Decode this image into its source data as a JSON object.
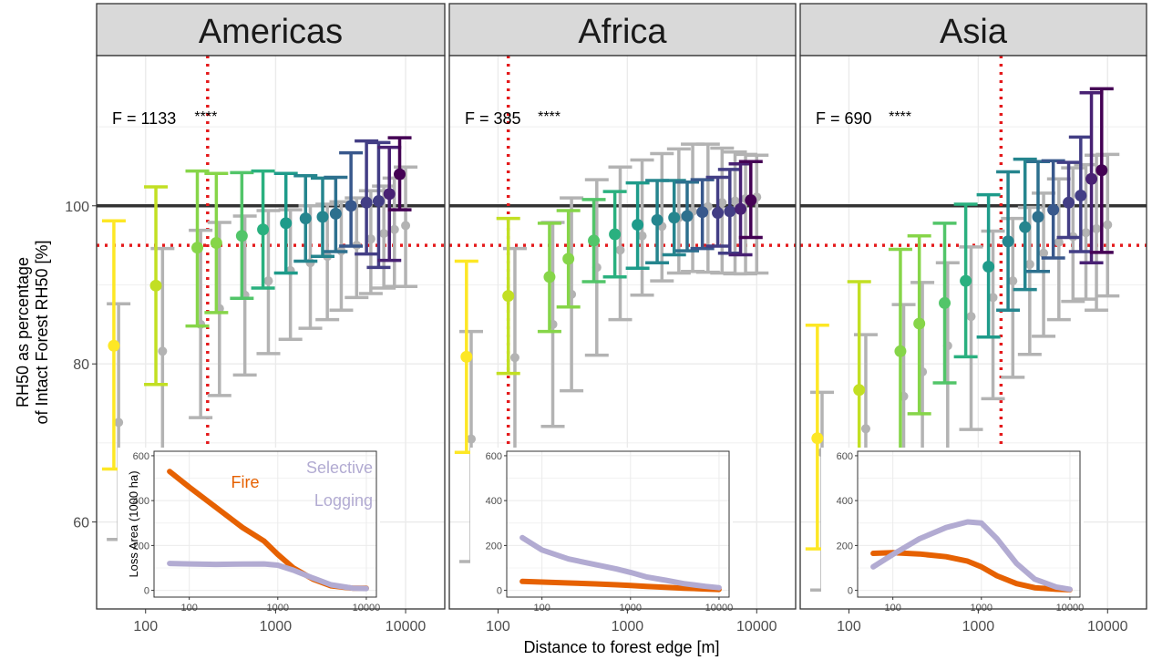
{
  "chart_data": {
    "type": "scatter",
    "xlabel": "Distance to forest edge [m]",
    "ylabel_lines": [
      "RH50 as percentage",
      "of Intact Forest RH50 [%]"
    ],
    "x_scale": "log",
    "xlim": [
      42,
      20000
    ],
    "ylim": [
      49,
      119
    ],
    "x_ticks": [
      "100",
      "1000",
      "10000"
    ],
    "y_ticks": [
      "60",
      "80",
      "100"
    ],
    "reference_lines": {
      "solid_y": 100,
      "dotted_y": 95
    },
    "colors": {
      "panel_strip_bg": "#d9d9d9",
      "grid": "#ebebeb",
      "grey_errorbar": "#b3b3b3",
      "reference_solid": "#333333",
      "reference_dotted": "#e41a1c",
      "viridis": [
        "#fde725",
        "#c2df23",
        "#86d549",
        "#52c569",
        "#2ab07f",
        "#1e9b8a",
        "#25858e",
        "#2d708e",
        "#38588c",
        "#433e85",
        "#482173",
        "#440154"
      ]
    },
    "inset": {
      "ylabel": "Loss Area (1000 ha)",
      "y_ticks": [
        "0",
        "200",
        "400",
        "600"
      ],
      "x_ticks": [
        "100",
        "1000",
        "10000"
      ],
      "ylim": [
        -30,
        620
      ],
      "xlim": [
        40,
        13000
      ],
      "series_names": [
        "Fire",
        "Selective Logging"
      ],
      "fire_label": "Fire",
      "logging_label_lines": [
        "Selective",
        "Logging"
      ],
      "fire_color": "#e66101",
      "logging_color": "#b2abd2"
    },
    "panels": [
      {
        "name": "Americas",
        "stat_text": "F = 1133",
        "stars": "****",
        "vline_x": 300,
        "x": [
          57,
          120,
          250,
          350,
          550,
          800,
          1200,
          1700,
          2300,
          2900,
          3800,
          5000,
          6200,
          7500,
          9000
        ],
        "y": [
          82.3,
          89.9,
          94.7,
          95.3,
          96.2,
          97.0,
          97.8,
          98.4,
          98.6,
          99.0,
          100.0,
          100.4,
          100.6,
          101.5,
          104.0
        ],
        "ymin": [
          66.7,
          77.4,
          84.8,
          86.5,
          88.3,
          89.6,
          91.5,
          93.0,
          93.6,
          94.2,
          94.9,
          93.9,
          92.2,
          93.1,
          99.5
        ],
        "ymax": [
          98.1,
          102.4,
          104.4,
          104.1,
          104.2,
          104.4,
          104.1,
          103.8,
          103.5,
          103.6,
          106.7,
          108.2,
          108.0,
          107.4,
          108.6
        ],
        "grey_x": [
          62,
          135,
          265,
          370,
          580,
          880,
          1300,
          1850,
          2500,
          3200,
          4200,
          5400,
          6800,
          8200,
          10000
        ],
        "grey_y": [
          72.6,
          81.6,
          85.0,
          87.0,
          88.7,
          90.5,
          91.8,
          92.8,
          93.6,
          94.3,
          95.0,
          95.8,
          96.5,
          97.0,
          97.5
        ],
        "grey_ymin": [
          57.8,
          68.8,
          73.2,
          76.0,
          78.6,
          81.3,
          83.1,
          84.5,
          85.6,
          86.8,
          88.4,
          88.9,
          89.6,
          89.8,
          89.8
        ],
        "grey_ymax": [
          87.6,
          94.6,
          96.9,
          97.9,
          98.7,
          99.4,
          99.5,
          100.0,
          100.2,
          100.5,
          101.0,
          101.9,
          102.5,
          103.5,
          104.9
        ],
        "inset_fire_x": [
          60,
          100,
          200,
          400,
          700,
          1000,
          1500,
          2500,
          4000,
          7000,
          10000
        ],
        "inset_fire": [
          530,
          460,
          370,
          280,
          220,
          160,
          100,
          50,
          20,
          10,
          10
        ],
        "inset_logging_x": [
          60,
          100,
          200,
          400,
          700,
          1000,
          1500,
          2500,
          4000,
          7000,
          10000
        ],
        "inset_logging": [
          120,
          118,
          116,
          117,
          118,
          112,
          90,
          55,
          25,
          10,
          8
        ]
      },
      {
        "name": "Africa",
        "stat_text": "F = 385",
        "stars": "****",
        "vline_x": 120,
        "x": [
          57,
          120,
          250,
          350,
          550,
          800,
          1200,
          1700,
          2300,
          2900,
          3800,
          5000,
          6200,
          7500,
          9000
        ],
        "y": [
          80.9,
          88.6,
          91.0,
          93.3,
          95.6,
          96.4,
          97.6,
          98.2,
          98.5,
          98.7,
          99.2,
          99.1,
          99.3,
          99.6,
          100.7
        ],
        "ymin": [
          68.8,
          78.8,
          84.1,
          87.2,
          90.4,
          91.0,
          92.1,
          92.8,
          93.8,
          94.3,
          94.6,
          94.9,
          94.0,
          93.8,
          96.0
        ],
        "ymax": [
          93.0,
          98.4,
          97.8,
          99.4,
          100.8,
          101.8,
          102.9,
          103.2,
          103.2,
          103.0,
          103.3,
          103.6,
          104.6,
          105.3,
          105.6
        ],
        "grey_x": [
          62,
          135,
          265,
          370,
          580,
          880,
          1300,
          1850,
          2500,
          3200,
          4200,
          5400,
          6800,
          8200,
          10000
        ],
        "grey_y": [
          70.5,
          80.8,
          85.0,
          88.8,
          92.2,
          94.4,
          96.2,
          97.4,
          98.5,
          99.3,
          99.9,
          100.4,
          100.6,
          100.9,
          101.1
        ],
        "grey_ymin": [
          55.0,
          67.4,
          72.1,
          76.6,
          81.1,
          85.6,
          88.7,
          90.5,
          91.5,
          91.7,
          91.6,
          91.5,
          91.4,
          91.4,
          91.5
        ],
        "grey_ymax": [
          84.1,
          94.6,
          97.9,
          101.0,
          103.3,
          104.9,
          105.8,
          106.6,
          107.2,
          107.8,
          107.8,
          107.3,
          106.8,
          106.5,
          106.4
        ],
        "inset_fire_x": [
          60,
          100,
          200,
          400,
          700,
          1000,
          1500,
          2500,
          4000,
          7000,
          10000
        ],
        "inset_fire": [
          40,
          37,
          33,
          29,
          25,
          22,
          18,
          14,
          10,
          6,
          4
        ],
        "inset_logging_x": [
          60,
          100,
          200,
          400,
          700,
          1000,
          1500,
          2500,
          4000,
          7000,
          10000
        ],
        "inset_logging": [
          235,
          180,
          140,
          115,
          95,
          80,
          60,
          45,
          30,
          18,
          12
        ]
      },
      {
        "name": "Asia",
        "stat_text": "F = 690",
        "stars": "****",
        "vline_x": 1500,
        "x": [
          57,
          120,
          250,
          350,
          550,
          800,
          1200,
          1700,
          2300,
          2900,
          3800,
          5000,
          6200,
          7500,
          9000
        ],
        "y": [
          70.6,
          76.7,
          81.6,
          85.1,
          87.7,
          90.5,
          92.3,
          95.5,
          97.3,
          98.6,
          99.5,
          100.4,
          101.3,
          103.4,
          104.5
        ],
        "ymin": [
          56.6,
          63.0,
          68.9,
          73.7,
          77.6,
          80.9,
          83.4,
          86.8,
          89.4,
          91.7,
          93.4,
          96.0,
          94.2,
          92.8,
          94.1
        ],
        "ymax": [
          84.9,
          90.4,
          94.5,
          96.2,
          97.8,
          100.2,
          101.4,
          104.3,
          105.9,
          105.6,
          105.7,
          105.5,
          108.7,
          114.3,
          114.8
        ],
        "grey_x": [
          62,
          135,
          265,
          370,
          580,
          880,
          1300,
          1850,
          2500,
          3200,
          4200,
          5400,
          6800,
          8200,
          10000
        ],
        "grey_y": [
          68.8,
          71.8,
          75.9,
          79.0,
          82.3,
          86.0,
          88.4,
          90.5,
          92.6,
          94.0,
          95.4,
          96.1,
          96.6,
          97.1,
          97.6
        ],
        "grey_ymin": [
          51.4,
          55.8,
          61.3,
          64.0,
          67.5,
          71.7,
          75.6,
          78.3,
          81.2,
          83.5,
          85.6,
          87.9,
          88.2,
          86.8,
          88.6
        ],
        "grey_ymax": [
          76.4,
          83.7,
          87.5,
          90.3,
          92.8,
          94.8,
          96.8,
          98.4,
          99.8,
          101.6,
          103.4,
          104.8,
          105.2,
          106.4,
          106.5
        ],
        "inset_fire_x": [
          60,
          100,
          200,
          400,
          700,
          1000,
          1500,
          2500,
          4000,
          7000,
          10000
        ],
        "inset_fire": [
          165,
          168,
          162,
          150,
          130,
          105,
          65,
          30,
          12,
          5,
          3
        ],
        "inset_logging_x": [
          60,
          100,
          200,
          400,
          700,
          1000,
          1500,
          2500,
          4000,
          7000,
          10000
        ],
        "inset_logging": [
          105,
          160,
          230,
          280,
          305,
          300,
          230,
          120,
          50,
          15,
          5
        ]
      }
    ]
  }
}
